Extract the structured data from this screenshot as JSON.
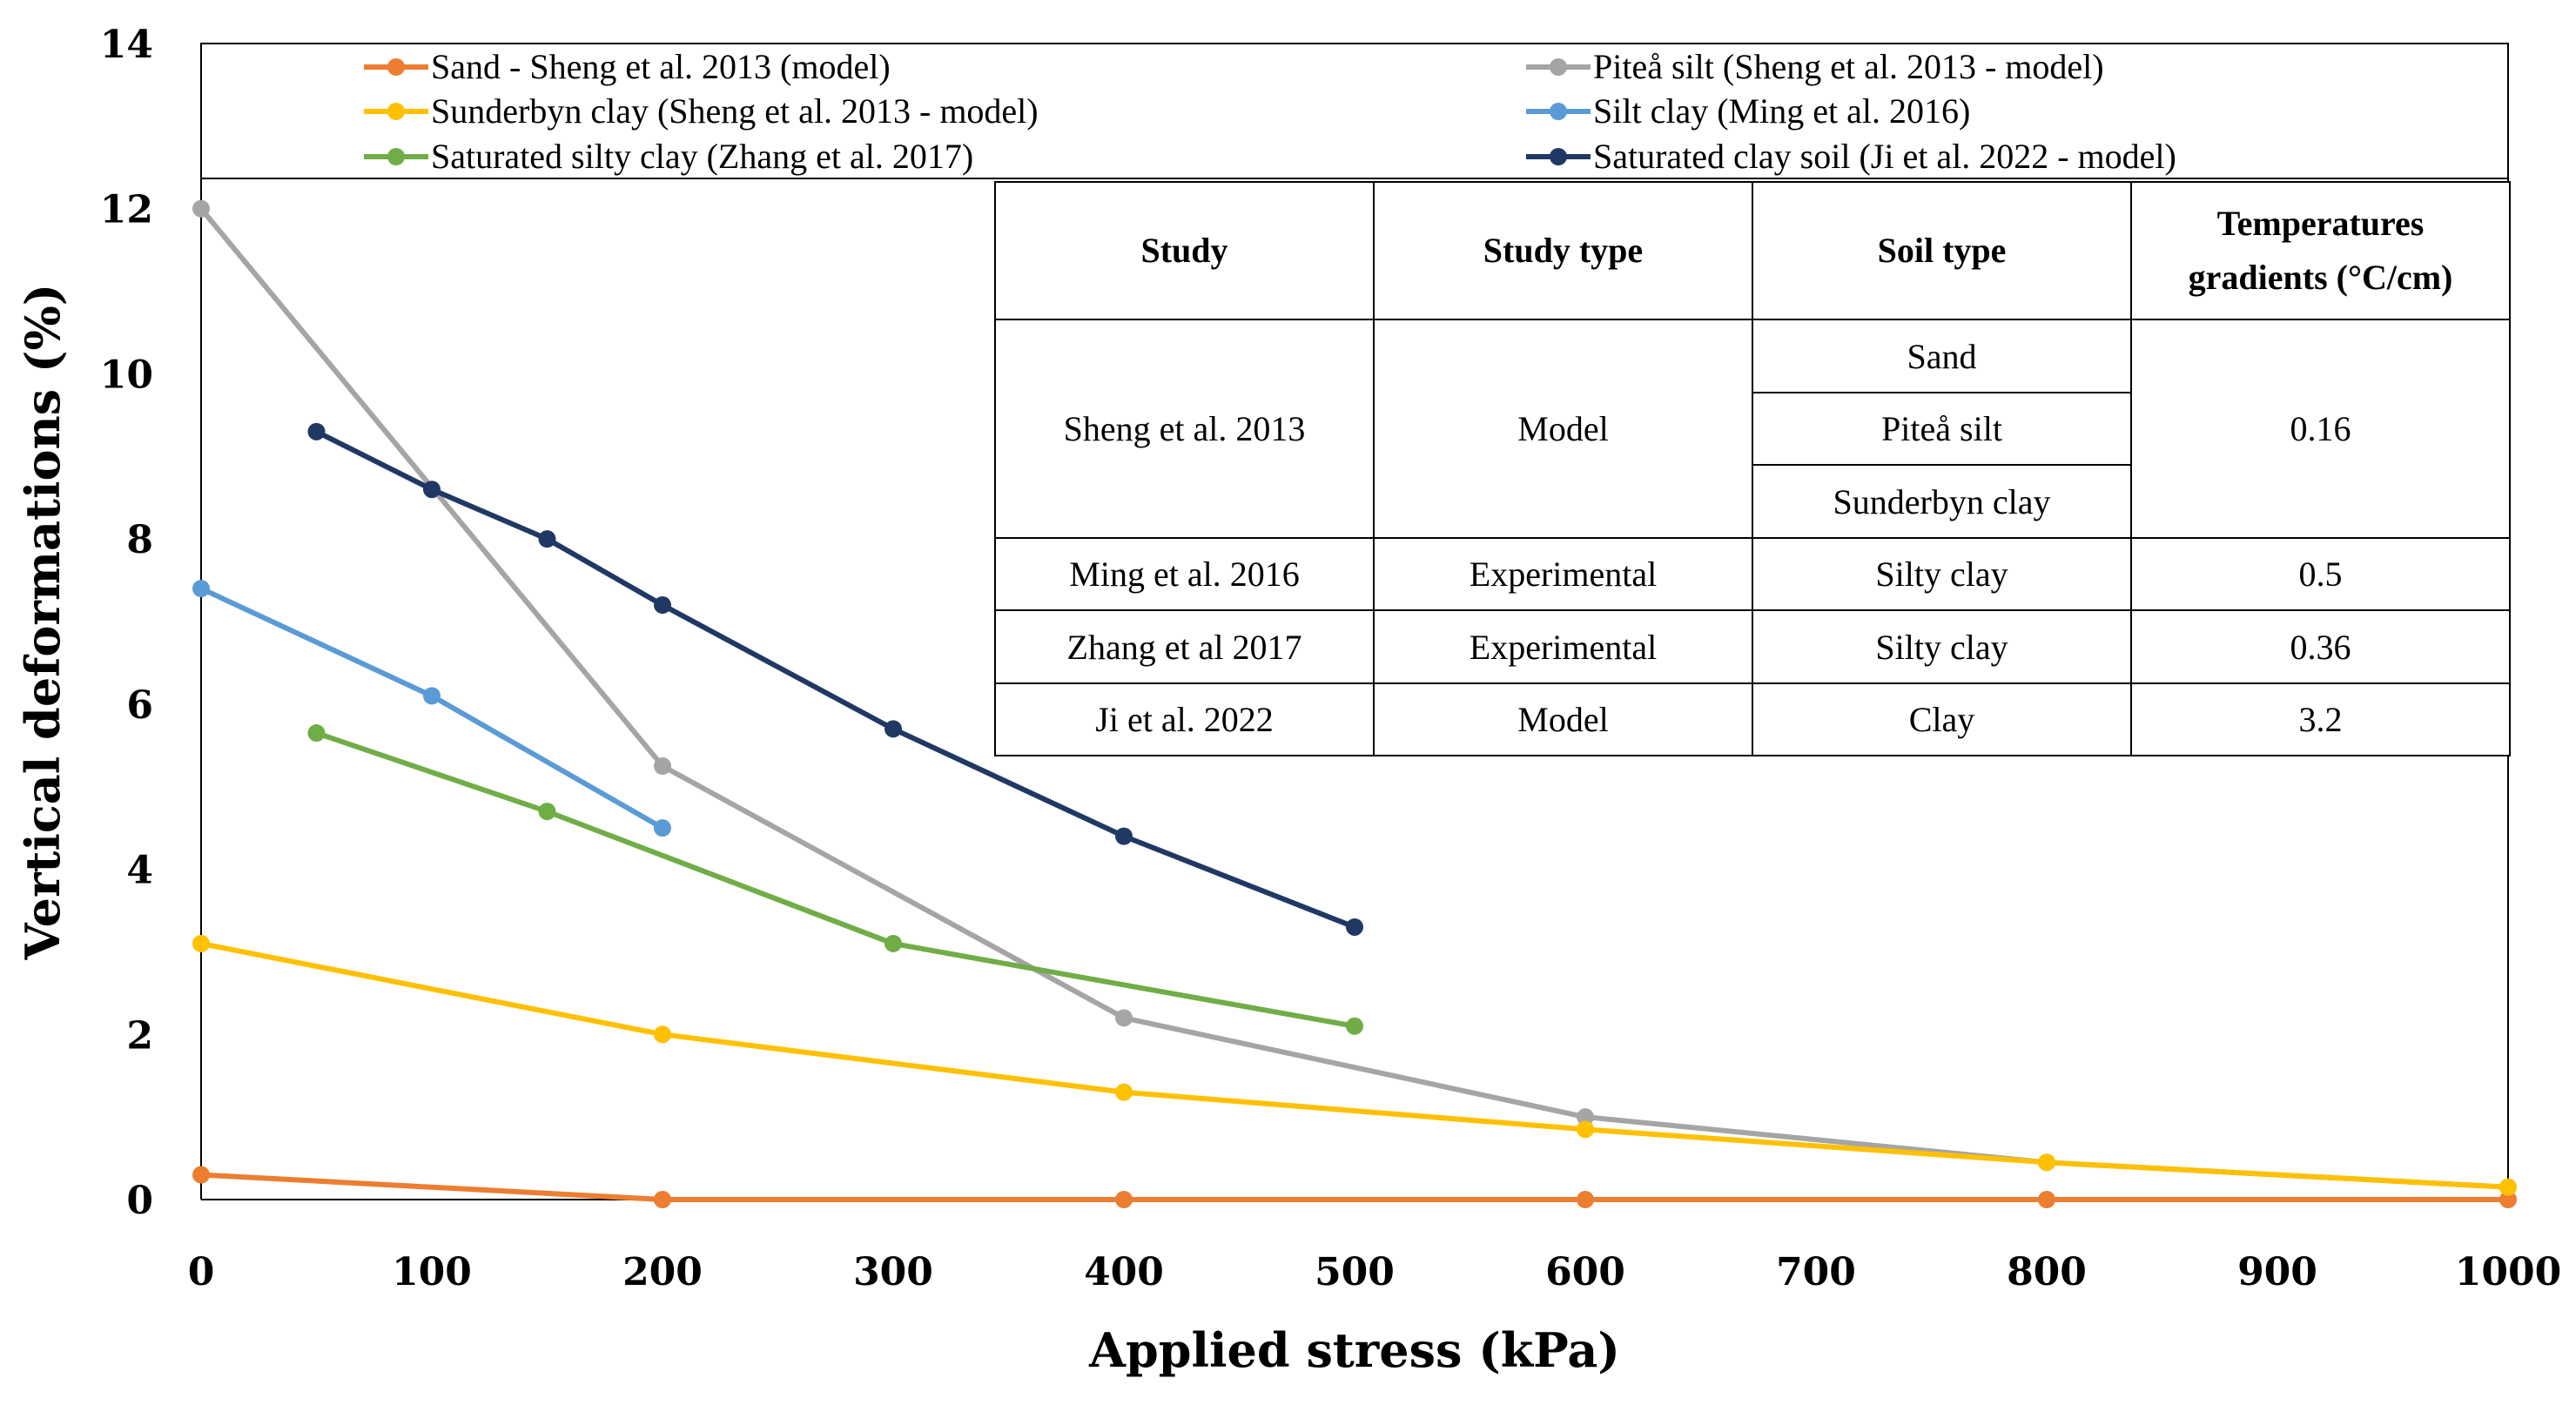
{
  "chart_data": {
    "type": "line",
    "xlabel": "Applied stress (kPa)",
    "ylabel": "Vertical deformations (%)",
    "xlim": [
      0,
      1000
    ],
    "ylim": [
      0,
      14
    ],
    "xticks": [
      0,
      100,
      200,
      300,
      400,
      500,
      600,
      700,
      800,
      900,
      1000
    ],
    "yticks": [
      0,
      2,
      4,
      6,
      8,
      10,
      12,
      14
    ],
    "grid": false,
    "legend_position": "top",
    "series": [
      {
        "name": "Sand - Sheng et al. 2013 (model)",
        "color": "#ED7D31",
        "x": [
          0,
          200,
          400,
          600,
          800,
          1000
        ],
        "y": [
          0.3,
          0.0,
          0.0,
          0.0,
          0.0,
          0.0
        ]
      },
      {
        "name": "Piteå silt (Sheng et al. 2013  - model)",
        "color": "#A5A5A5",
        "x": [
          0,
          200,
          400,
          600,
          800,
          1000
        ],
        "y": [
          12.0,
          5.25,
          2.2,
          1.0,
          0.45,
          0.15
        ]
      },
      {
        "name": "Sunderbyn clay (Sheng et al. 2013  - model)",
        "color": "#FFC000",
        "x": [
          0,
          200,
          400,
          600,
          800,
          1000
        ],
        "y": [
          3.1,
          2.0,
          1.3,
          0.85,
          0.45,
          0.15
        ]
      },
      {
        "name": "Silt clay (Ming et al. 2016)",
        "color": "#5B9BD5",
        "x": [
          0,
          100,
          200
        ],
        "y": [
          7.4,
          6.1,
          4.5
        ]
      },
      {
        "name": "Saturated silty clay (Zhang et al. 2017)",
        "color": "#70AD47",
        "x": [
          50,
          150,
          300,
          500
        ],
        "y": [
          5.65,
          4.7,
          3.1,
          2.1
        ]
      },
      {
        "name": "Saturated clay soil (Ji et al. 2022 - model)",
        "color": "#203864",
        "x": [
          50,
          100,
          150,
          200,
          300,
          400,
          500
        ],
        "y": [
          9.3,
          8.6,
          8.0,
          7.2,
          5.7,
          4.4,
          3.3
        ]
      }
    ]
  },
  "table": {
    "headers": [
      "Study",
      "Study type",
      "Soil type",
      "Temperatures gradients (°C/cm)"
    ],
    "rows": {
      "sheng": {
        "study": "Sheng et al. 2013",
        "type": "Model",
        "soils": [
          "Sand",
          "Piteå silt",
          "Sunderbyn clay"
        ],
        "gradient": "0.16"
      },
      "ming": {
        "study": "Ming et al. 2016",
        "type": "Experimental",
        "soil": "Silty clay",
        "gradient": "0.5"
      },
      "zhang": {
        "study": "Zhang et al 2017",
        "type": "Experimental",
        "soil": "Silty clay",
        "gradient": "0.36"
      },
      "ji": {
        "study": "Ji et al. 2022",
        "type": "Model",
        "soil": "Clay",
        "gradient": "3.2"
      }
    }
  }
}
